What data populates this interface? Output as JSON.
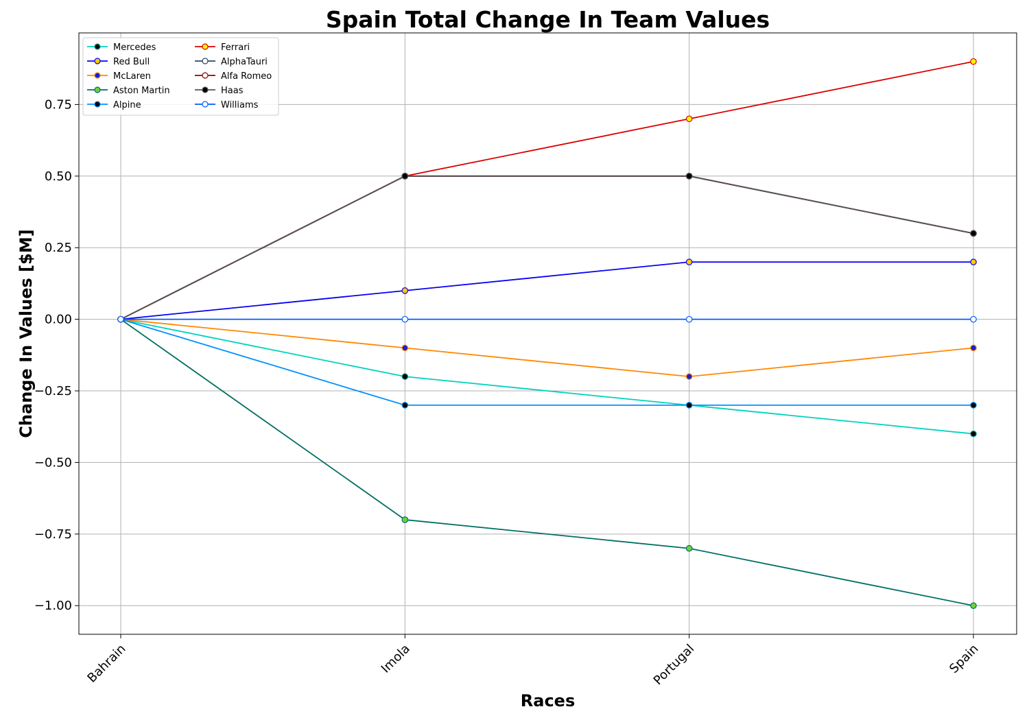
{
  "chart_data": {
    "type": "line",
    "title": "Spain Total Change In Team Values",
    "xlabel": "Races",
    "ylabel": "Change In Values [$M]",
    "categories": [
      "Bahrain",
      "Imola",
      "Portugal",
      "Spain"
    ],
    "ylim": [
      -1.1,
      1.0
    ],
    "yticks": [
      -1.0,
      -0.75,
      -0.5,
      -0.25,
      0.0,
      0.25,
      0.5,
      0.75
    ],
    "ytick_labels": [
      "−1.00",
      "−0.75",
      "−0.50",
      "−0.25",
      "0.00",
      "0.25",
      "0.50",
      "0.75"
    ],
    "grid": true,
    "legend_position": "top-left",
    "series": [
      {
        "name": "Mercedes",
        "values": [
          0,
          -0.2,
          -0.3,
          -0.4
        ],
        "line_color": "#00d2be",
        "marker_face": "#000000",
        "marker_edge": "#00a896"
      },
      {
        "name": "Red Bull",
        "values": [
          0,
          0.1,
          0.2,
          0.2
        ],
        "line_color": "#0600ef",
        "marker_face": "#ffc906",
        "marker_edge": "#0600ef"
      },
      {
        "name": "McLaren",
        "values": [
          0,
          -0.1,
          -0.2,
          -0.1
        ],
        "line_color": "#ff8700",
        "marker_face": "#1e1ecf",
        "marker_edge": "#ff8700"
      },
      {
        "name": "Aston Martin",
        "values": [
          0,
          -0.7,
          -0.8,
          -1.0
        ],
        "line_color": "#006f62",
        "marker_face": "#6cd23c",
        "marker_edge": "#006f62"
      },
      {
        "name": "Alpine",
        "values": [
          0,
          -0.3,
          -0.3,
          -0.3
        ],
        "line_color": "#0090ff",
        "marker_face": "#000000",
        "marker_edge": "#0090ff"
      },
      {
        "name": "Ferrari",
        "values": [
          0,
          0.5,
          0.7,
          0.9
        ],
        "line_color": "#dc0000",
        "marker_face": "#fff500",
        "marker_edge": "#dc0000"
      },
      {
        "name": "AlphaTauri",
        "values": [
          0,
          0.5,
          0.5,
          0.3
        ],
        "line_color": "#2b4562",
        "marker_face": "#ffffff",
        "marker_edge": "#2b4562"
      },
      {
        "name": "Alfa Romeo",
        "values": [
          0,
          0.5,
          0.5,
          0.3
        ],
        "line_color": "#900000",
        "marker_face": "#ffffff",
        "marker_edge": "#900000"
      },
      {
        "name": "Haas",
        "values": [
          0,
          0.5,
          0.5,
          0.3
        ],
        "line_color": "#555555",
        "marker_face": "#000000",
        "marker_edge": "#555555"
      },
      {
        "name": "Williams",
        "values": [
          0,
          0,
          0,
          0
        ],
        "line_color": "#005aff",
        "marker_face": "#ffffff",
        "marker_edge": "#005aff"
      }
    ]
  }
}
